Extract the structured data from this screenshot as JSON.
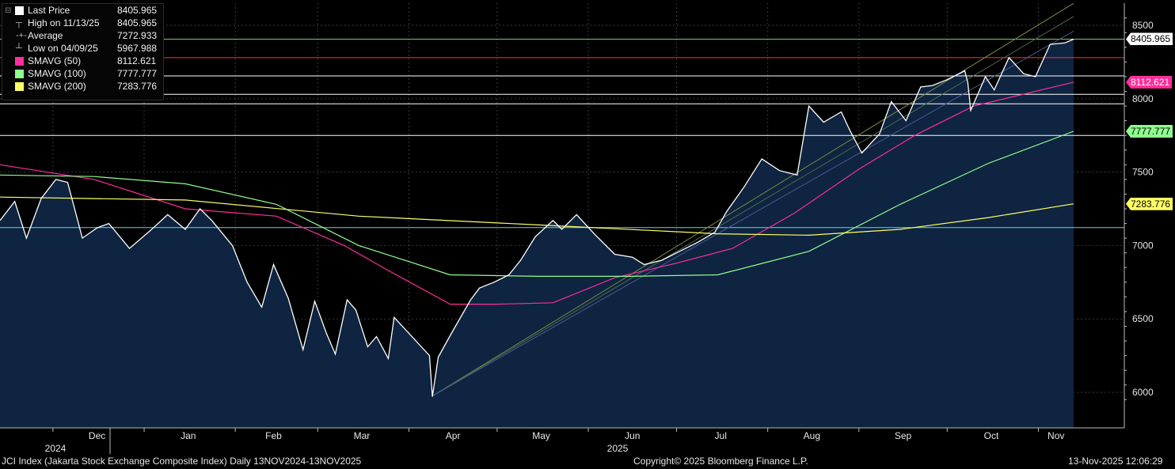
{
  "legend": {
    "rows": [
      {
        "label": "Last Price",
        "value": "8405.965",
        "color": "#ffffff",
        "marker": "square"
      },
      {
        "label": "High on 11/13/25",
        "value": "8405.965",
        "marker": "high"
      },
      {
        "label": "Average",
        "value": "7272.933",
        "marker": "avg"
      },
      {
        "label": "Low on 04/09/25",
        "value": "5967.988",
        "marker": "low"
      },
      {
        "label": "SMAVG (50)",
        "value": "8112.621",
        "color": "#ff2d9b",
        "marker": "square"
      },
      {
        "label": "SMAVG (100)",
        "value": "7777.777",
        "color": "#8fff8f",
        "marker": "square"
      },
      {
        "label": "SMAVG (200)",
        "value": "7283.776",
        "color": "#ffff66",
        "marker": "square"
      }
    ]
  },
  "chart_data": {
    "type": "area",
    "y_ticks": [
      6000,
      6500,
      7000,
      7500,
      8000,
      8500
    ],
    "x_month_labels": [
      "Dec",
      "Jan",
      "Feb",
      "Mar",
      "Apr",
      "May",
      "Jun",
      "Jul",
      "Aug",
      "Sep",
      "Oct",
      "Nov"
    ],
    "x_year_labels": [
      "2024",
      "2025"
    ],
    "date_range": [
      "2024-11-13",
      "2025-11-13"
    ],
    "ylim": [
      5920,
      8600
    ],
    "series": [
      {
        "name": "Last Price",
        "color": "#ffffff",
        "fill": "#0e2440",
        "x": [
          "2024-11-13",
          "2024-11-18",
          "2024-11-22",
          "2024-11-27",
          "2024-12-02",
          "2024-12-06",
          "2024-12-11",
          "2024-12-16",
          "2024-12-20",
          "2024-12-27",
          "2025-01-03",
          "2025-01-09",
          "2025-01-15",
          "2025-01-20",
          "2025-01-24",
          "2025-01-31",
          "2025-02-05",
          "2025-02-10",
          "2025-02-14",
          "2025-02-19",
          "2025-02-24",
          "2025-02-28",
          "2025-03-04",
          "2025-03-07",
          "2025-03-11",
          "2025-03-14",
          "2025-03-18",
          "2025-03-21",
          "2025-03-25",
          "2025-03-27",
          "2025-04-08",
          "2025-04-09",
          "2025-04-11",
          "2025-04-16",
          "2025-04-22",
          "2025-04-25",
          "2025-04-30",
          "2025-05-05",
          "2025-05-09",
          "2025-05-14",
          "2025-05-20",
          "2025-05-23",
          "2025-05-28",
          "2025-06-03",
          "2025-06-10",
          "2025-06-16",
          "2025-06-20",
          "2025-06-26",
          "2025-07-02",
          "2025-07-08",
          "2025-07-14",
          "2025-07-18",
          "2025-07-24",
          "2025-07-30",
          "2025-08-05",
          "2025-08-11",
          "2025-08-15",
          "2025-08-20",
          "2025-08-26",
          "2025-08-29",
          "2025-09-02",
          "2025-09-08",
          "2025-09-12",
          "2025-09-17",
          "2025-09-22",
          "2025-09-26",
          "2025-10-01",
          "2025-10-07",
          "2025-10-08",
          "2025-10-09",
          "2025-10-14",
          "2025-10-17",
          "2025-10-22",
          "2025-10-27",
          "2025-10-31",
          "2025-11-05",
          "2025-11-10",
          "2025-11-13"
        ],
        "y": [
          7170,
          7300,
          7050,
          7320,
          7450,
          7430,
          7050,
          7120,
          7150,
          6980,
          7100,
          7210,
          7110,
          7250,
          7170,
          7000,
          6750,
          6580,
          6870,
          6640,
          6290,
          6620,
          6400,
          6260,
          6630,
          6560,
          6310,
          6380,
          6230,
          6510,
          6250,
          5970,
          6240,
          6420,
          6630,
          6710,
          6750,
          6800,
          6900,
          7060,
          7170,
          7110,
          7210,
          7080,
          6940,
          6920,
          6870,
          6900,
          6960,
          7020,
          7090,
          7230,
          7400,
          7590,
          7510,
          7480,
          7950,
          7840,
          7910,
          7780,
          7630,
          7760,
          7980,
          7850,
          8080,
          8090,
          8130,
          8190,
          8110,
          7920,
          8150,
          8060,
          8280,
          8170,
          8150,
          8370,
          8380,
          8405.965
        ]
      },
      {
        "name": "SMAVG (50)",
        "color": "#ff2d9b",
        "x": [
          "2024-11-13",
          "2024-12-15",
          "2025-01-15",
          "2025-02-15",
          "2025-03-10",
          "2025-03-25",
          "2025-04-15",
          "2025-05-01",
          "2025-05-20",
          "2025-06-10",
          "2025-07-01",
          "2025-07-20",
          "2025-08-10",
          "2025-09-01",
          "2025-09-20",
          "2025-10-10",
          "2025-11-13"
        ],
        "y": [
          7550,
          7450,
          7250,
          7200,
          7000,
          6830,
          6600,
          6600,
          6610,
          6780,
          6880,
          6980,
          7220,
          7520,
          7750,
          7950,
          8112.621
        ]
      },
      {
        "name": "SMAVG (100)",
        "color": "#8fff8f",
        "x": [
          "2024-11-13",
          "2024-12-15",
          "2025-01-15",
          "2025-02-15",
          "2025-03-15",
          "2025-04-15",
          "2025-05-15",
          "2025-06-15",
          "2025-07-15",
          "2025-08-15",
          "2025-09-15",
          "2025-10-15",
          "2025-11-13"
        ],
        "y": [
          7480,
          7470,
          7420,
          7280,
          7000,
          6800,
          6790,
          6790,
          6800,
          6960,
          7280,
          7560,
          7777.777
        ]
      },
      {
        "name": "SMAVG (200)",
        "color": "#ffff66",
        "x": [
          "2024-11-13",
          "2025-01-15",
          "2025-03-15",
          "2025-05-15",
          "2025-07-15",
          "2025-08-15",
          "2025-09-15",
          "2025-10-15",
          "2025-11-13"
        ],
        "y": [
          7330,
          7310,
          7200,
          7140,
          7080,
          7070,
          7110,
          7190,
          7283.776
        ]
      }
    ],
    "horizontal_lines": [
      {
        "y": 8405.965,
        "color": "#6fcf6f"
      },
      {
        "y": 8280,
        "color": "#ff3333"
      },
      {
        "y": 8155,
        "color": "#ffffff"
      },
      {
        "y": 8030,
        "color": "#ffffff"
      },
      {
        "y": 7965,
        "color": "#ffffff"
      },
      {
        "y": 7750,
        "color": "#ffffff"
      },
      {
        "y": 7122,
        "color": "#5fd8e8"
      }
    ],
    "trend_lines": [
      {
        "x": [
          "2025-04-09",
          "2025-11-13"
        ],
        "y": [
          5975,
          8650
        ],
        "color": "#7a8a40"
      },
      {
        "x": [
          "2025-04-09",
          "2025-11-13"
        ],
        "y": [
          5975,
          8560
        ],
        "color": "#4a6a50"
      },
      {
        "x": [
          "2025-04-09",
          "2025-11-13"
        ],
        "y": [
          5975,
          8460
        ],
        "color": "#4a5a90"
      }
    ],
    "price_tags": [
      {
        "value": "8405.965",
        "y": 8405.965,
        "bg": "#ffffff",
        "fg": "#000000"
      },
      {
        "value": "8112.621",
        "y": 8112.621,
        "bg": "#ff2d9b",
        "fg": "#ffffff"
      },
      {
        "value": "7777.777",
        "y": 7777.777,
        "bg": "#8fff8f",
        "fg": "#000000"
      },
      {
        "value": "7283.776",
        "y": 7283.776,
        "bg": "#ffff66",
        "fg": "#000000"
      }
    ]
  },
  "footer": {
    "title": "JCI Index (Jakarta Stock Exchange Composite Index) Daily 13NOV2024-13NOV2025",
    "copyright": "Copyright© 2025 Bloomberg Finance L.P.",
    "timestamp": "13-Nov-2025 12:06:29"
  }
}
